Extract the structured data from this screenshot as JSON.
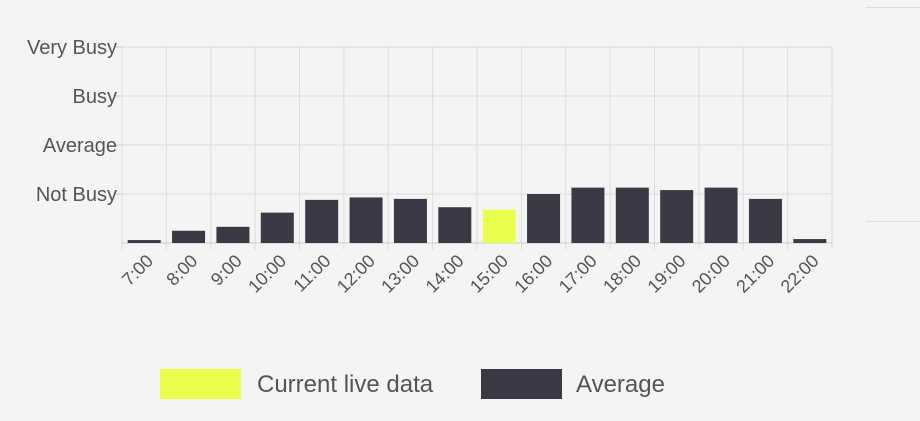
{
  "chart_data": {
    "type": "bar",
    "title": "",
    "xlabel": "",
    "ylabel": "",
    "categories": [
      "7:00",
      "8:00",
      "9:00",
      "10:00",
      "11:00",
      "12:00",
      "13:00",
      "14:00",
      "15:00",
      "16:00",
      "17:00",
      "18:00",
      "19:00",
      "20:00",
      "21:00",
      "22:00"
    ],
    "y_tick_labels": [
      "Not Busy",
      "Average",
      "Busy",
      "Very Busy"
    ],
    "y_tick_values": [
      1,
      2,
      3,
      4
    ],
    "ylim": [
      0,
      4
    ],
    "grid": true,
    "legend_position": "bottom",
    "series": [
      {
        "name": "Average",
        "color": "#393a45",
        "values": [
          0.06,
          0.25,
          0.33,
          0.62,
          0.88,
          0.93,
          0.9,
          0.73,
          null,
          1.0,
          1.13,
          1.13,
          1.08,
          1.13,
          0.9,
          0.08
        ]
      },
      {
        "name": "Current live data",
        "color": "#eaff4d",
        "values": [
          null,
          null,
          null,
          null,
          null,
          null,
          null,
          null,
          0.68,
          null,
          null,
          null,
          null,
          null,
          null,
          null
        ]
      }
    ],
    "legend": [
      {
        "label": "Current live data",
        "color": "#eaff4d"
      },
      {
        "label": "Average",
        "color": "#393a45"
      }
    ]
  }
}
